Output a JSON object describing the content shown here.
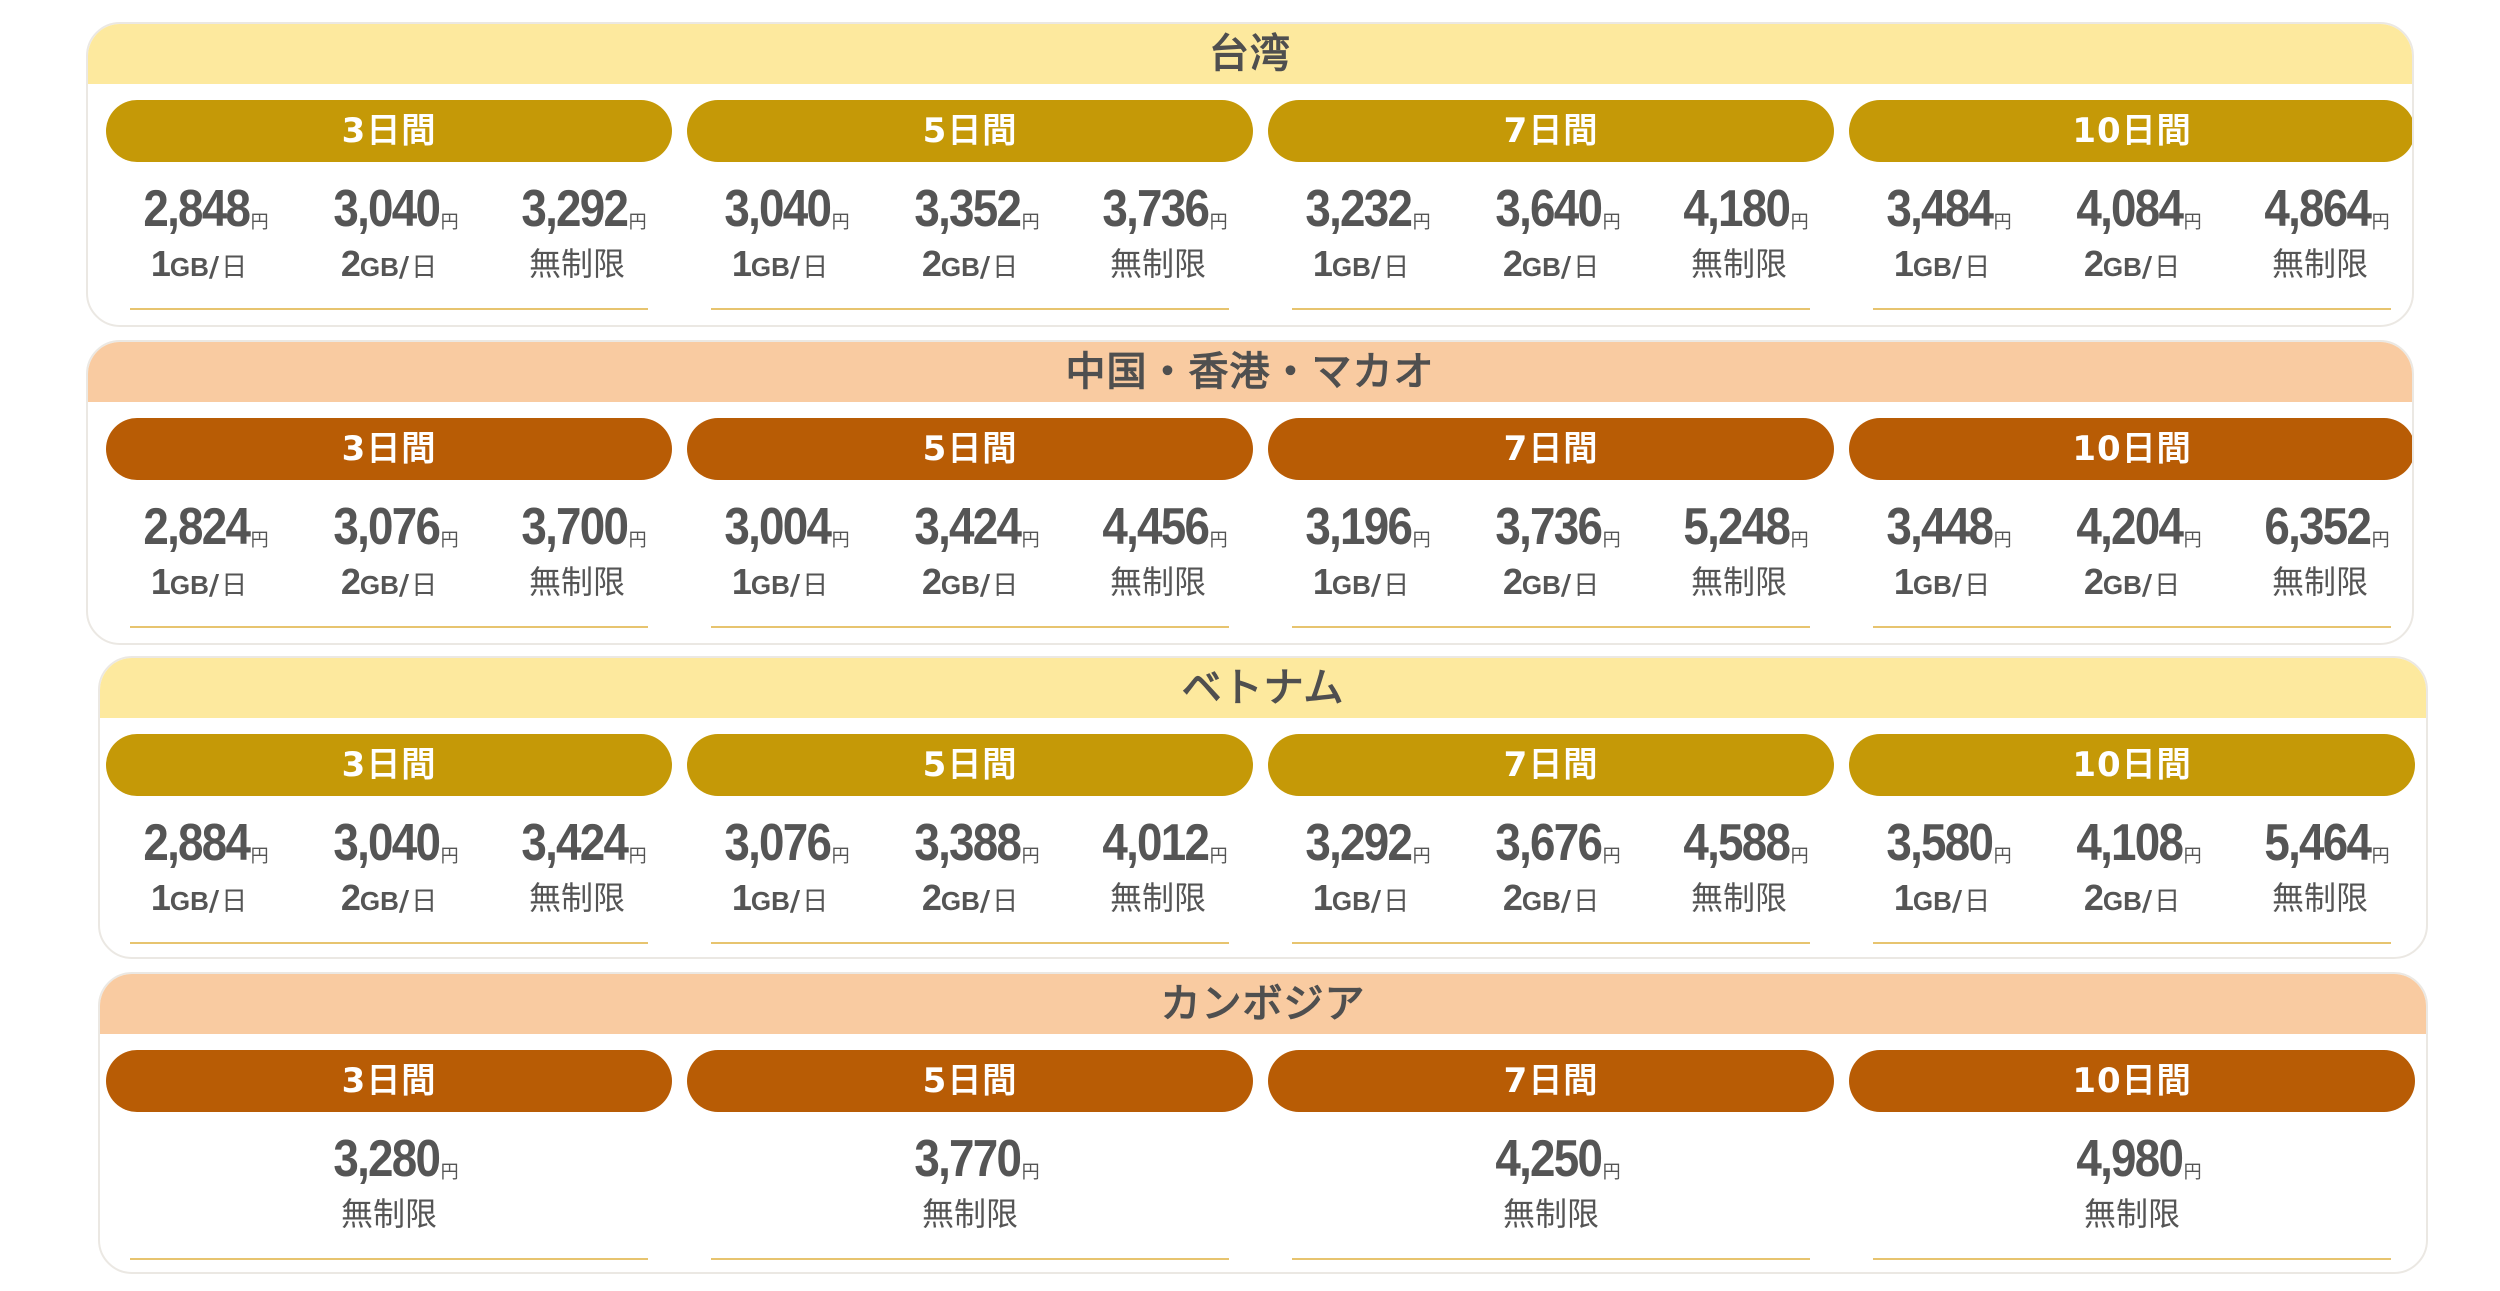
{
  "currency_unit": "円",
  "regions": [
    {
      "name": "台湾",
      "theme": "yellow",
      "periods": [
        {
          "label": "3日間",
          "plans": [
            {
              "price": "2,848",
              "amount": "1",
              "unit": "GB",
              "per": "日"
            },
            {
              "price": "3,040",
              "amount": "2",
              "unit": "GB",
              "per": "日"
            },
            {
              "price": "3,292",
              "label": "無制限"
            }
          ]
        },
        {
          "label": "5日間",
          "plans": [
            {
              "price": "3,040",
              "amount": "1",
              "unit": "GB",
              "per": "日"
            },
            {
              "price": "3,352",
              "amount": "2",
              "unit": "GB",
              "per": "日"
            },
            {
              "price": "3,736",
              "label": "無制限"
            }
          ]
        },
        {
          "label": "7日間",
          "plans": [
            {
              "price": "3,232",
              "amount": "1",
              "unit": "GB",
              "per": "日"
            },
            {
              "price": "3,640",
              "amount": "2",
              "unit": "GB",
              "per": "日"
            },
            {
              "price": "4,180",
              "label": "無制限"
            }
          ]
        },
        {
          "label": "10日間",
          "plans": [
            {
              "price": "3,484",
              "amount": "1",
              "unit": "GB",
              "per": "日"
            },
            {
              "price": "4,084",
              "amount": "2",
              "unit": "GB",
              "per": "日"
            },
            {
              "price": "4,864",
              "label": "無制限"
            }
          ]
        }
      ]
    },
    {
      "name": "中国・香港・マカオ",
      "theme": "peach",
      "periods": [
        {
          "label": "3日間",
          "plans": [
            {
              "price": "2,824",
              "amount": "1",
              "unit": "GB",
              "per": "日"
            },
            {
              "price": "3,076",
              "amount": "2",
              "unit": "GB",
              "per": "日"
            },
            {
              "price": "3,700",
              "label": "無制限"
            }
          ]
        },
        {
          "label": "5日間",
          "plans": [
            {
              "price": "3,004",
              "amount": "1",
              "unit": "GB",
              "per": "日"
            },
            {
              "price": "3,424",
              "amount": "2",
              "unit": "GB",
              "per": "日"
            },
            {
              "price": "4,456",
              "label": "無制限"
            }
          ]
        },
        {
          "label": "7日間",
          "plans": [
            {
              "price": "3,196",
              "amount": "1",
              "unit": "GB",
              "per": "日"
            },
            {
              "price": "3,736",
              "amount": "2",
              "unit": "GB",
              "per": "日"
            },
            {
              "price": "5,248",
              "label": "無制限"
            }
          ]
        },
        {
          "label": "10日間",
          "plans": [
            {
              "price": "3,448",
              "amount": "1",
              "unit": "GB",
              "per": "日"
            },
            {
              "price": "4,204",
              "amount": "2",
              "unit": "GB",
              "per": "日"
            },
            {
              "price": "6,352",
              "label": "無制限"
            }
          ]
        }
      ]
    },
    {
      "name": "ベトナム",
      "theme": "yellow",
      "periods": [
        {
          "label": "3日間",
          "plans": [
            {
              "price": "2,884",
              "amount": "1",
              "unit": "GB",
              "per": "日"
            },
            {
              "price": "3,040",
              "amount": "2",
              "unit": "GB",
              "per": "日"
            },
            {
              "price": "3,424",
              "label": "無制限"
            }
          ]
        },
        {
          "label": "5日間",
          "plans": [
            {
              "price": "3,076",
              "amount": "1",
              "unit": "GB",
              "per": "日"
            },
            {
              "price": "3,388",
              "amount": "2",
              "unit": "GB",
              "per": "日"
            },
            {
              "price": "4,012",
              "label": "無制限"
            }
          ]
        },
        {
          "label": "7日間",
          "plans": [
            {
              "price": "3,292",
              "amount": "1",
              "unit": "GB",
              "per": "日"
            },
            {
              "price": "3,676",
              "amount": "2",
              "unit": "GB",
              "per": "日"
            },
            {
              "price": "4,588",
              "label": "無制限"
            }
          ]
        },
        {
          "label": "10日間",
          "plans": [
            {
              "price": "3,580",
              "amount": "1",
              "unit": "GB",
              "per": "日"
            },
            {
              "price": "4,108",
              "amount": "2",
              "unit": "GB",
              "per": "日"
            },
            {
              "price": "5,464",
              "label": "無制限"
            }
          ]
        }
      ]
    },
    {
      "name": "カンボジア",
      "theme": "peach",
      "periods": [
        {
          "label": "3日間",
          "plans": [
            {
              "price": "3,280",
              "label": "無制限"
            }
          ]
        },
        {
          "label": "5日間",
          "plans": [
            {
              "price": "3,770",
              "label": "無制限"
            }
          ]
        },
        {
          "label": "7日間",
          "plans": [
            {
              "price": "4,250",
              "label": "無制限"
            }
          ]
        },
        {
          "label": "10日間",
          "plans": [
            {
              "price": "4,980",
              "label": "無制限"
            }
          ]
        }
      ]
    }
  ]
}
